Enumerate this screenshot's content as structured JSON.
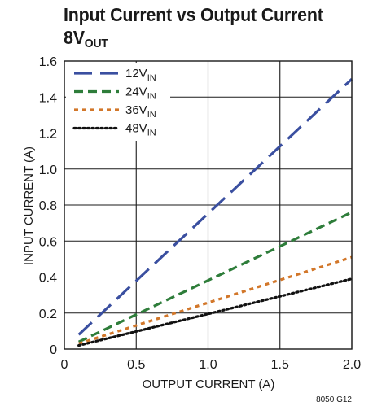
{
  "chart_data": {
    "type": "line",
    "title": "Input Current vs Output Current",
    "subtitle": {
      "main": "8V",
      "sub": "OUT"
    },
    "xlabel": "OUTPUT CURRENT (A)",
    "ylabel": "INPUT CURRENT (A)",
    "xlim": [
      0,
      2.0
    ],
    "ylim": [
      0,
      1.6
    ],
    "xticks": [
      "0",
      "0.5",
      "1.0",
      "1.5",
      "2.0"
    ],
    "yticks": [
      "0",
      "0.2",
      "0.4",
      "0.6",
      "0.8",
      "1.0",
      "1.2",
      "1.4",
      "1.6"
    ],
    "grid": true,
    "legend_position": "top-left",
    "figure_id": "8050 G12",
    "series": [
      {
        "name": "12V",
        "name_sub": "IN",
        "color": "#3a4fa0",
        "dash": "long-dash",
        "x": [
          0.1,
          2.0
        ],
        "y": [
          0.08,
          1.5
        ]
      },
      {
        "name": "24V",
        "name_sub": "IN",
        "color": "#2e7d3a",
        "dash": "dash",
        "x": [
          0.1,
          2.0
        ],
        "y": [
          0.04,
          0.76
        ]
      },
      {
        "name": "36V",
        "name_sub": "IN",
        "color": "#d2772a",
        "dash": "short-dash",
        "x": [
          0.1,
          2.0
        ],
        "y": [
          0.03,
          0.51
        ]
      },
      {
        "name": "48V",
        "name_sub": "IN",
        "color": "#111111",
        "dash": "dot",
        "x": [
          0.1,
          2.0
        ],
        "y": [
          0.02,
          0.39
        ]
      }
    ]
  }
}
